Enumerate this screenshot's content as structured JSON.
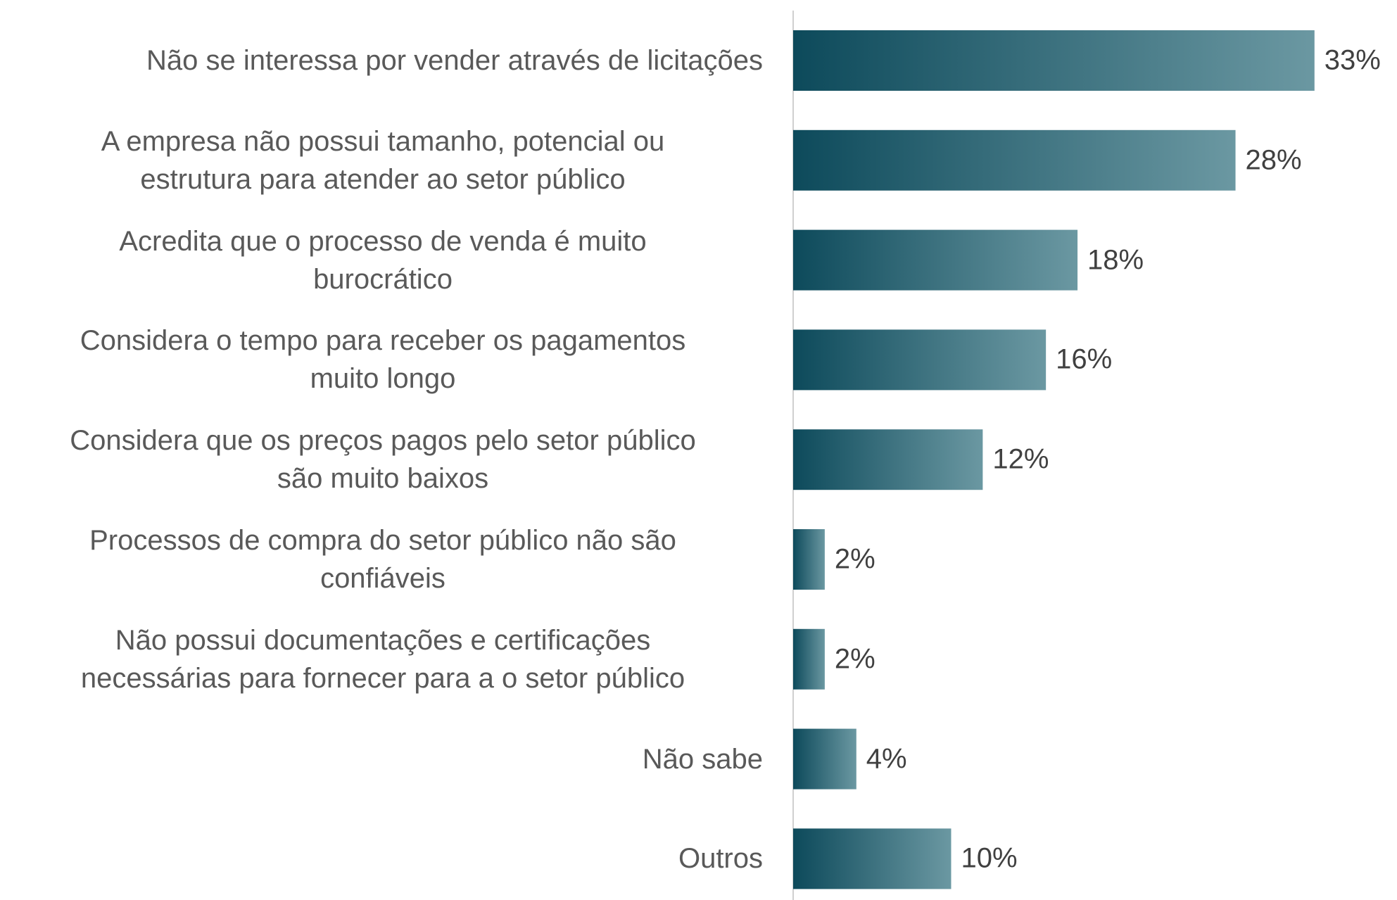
{
  "chart_data": {
    "type": "bar",
    "orientation": "horizontal",
    "categories": [
      "Não se interessa por vender através de licitações",
      "A empresa não possui tamanho, potencial ou\nestrutura para atender ao setor público",
      "Acredita que o processo de venda é muito\nburocrático",
      "Considera o tempo para receber os pagamentos\nmuito longo",
      "Considera que os preços pagos pelo setor público\nsão muito baixos",
      "Processos de compra do setor público não são\nconfiáveis",
      "Não possui documentações e certificações\nnecessárias para fornecer para a o setor público",
      "Não sabe",
      "Outros"
    ],
    "values": [
      33,
      28,
      18,
      16,
      12,
      2,
      2,
      4,
      10
    ],
    "value_labels": [
      "33%",
      "28%",
      "18%",
      "16%",
      "12%",
      "2%",
      "2%",
      "4%",
      "10%"
    ],
    "colors": [
      "#0d4a5b",
      "#6b98a2"
    ],
    "xlim": [
      0,
      38
    ]
  }
}
